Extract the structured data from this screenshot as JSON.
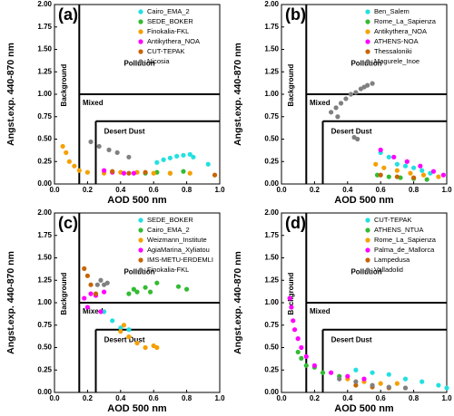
{
  "chart_data": [
    {
      "type": "scatter",
      "panel_label": "(a)",
      "xlabel": "AOD 500 nm",
      "ylabel": "Angst.exp. 440-870 nm",
      "regions": [
        "Pollution",
        "Mixed",
        "Background",
        "Desert Dust"
      ],
      "xlim": [
        0,
        1
      ],
      "ylim": [
        0,
        2
      ],
      "xticks": [
        {
          "value": 0,
          "label": "0.0"
        },
        0.2,
        0.4,
        0.6,
        0.8,
        {
          "value": 1,
          "label": "1.0"
        }
      ],
      "yticks": [
        {
          "value": 0,
          "label": "0.00"
        },
        0.25,
        {
          "value": 0.5,
          "label": "0.50"
        },
        0.75,
        {
          "value": 1,
          "label": "1.00"
        },
        1.25,
        {
          "value": 1.5,
          "label": "1.50"
        },
        1.75,
        {
          "value": 2,
          "label": "2.00"
        }
      ],
      "series": [
        {
          "name": "Cairo_EMA_2",
          "color": "#22e0e0",
          "x": [
            0.62,
            0.66,
            0.7,
            0.74,
            0.78,
            0.82,
            0.84,
            0.93
          ],
          "values": [
            0.24,
            0.27,
            0.29,
            0.31,
            0.32,
            0.33,
            0.3,
            0.22
          ]
        },
        {
          "name": "SEDE_BOKER",
          "color": "#33bb33",
          "x": [
            0.55,
            0.62,
            0.7,
            0.78
          ],
          "values": [
            0.12,
            0.13,
            0.12,
            0.14
          ]
        },
        {
          "name": "Finokalia-FKL",
          "color": "#f5a000",
          "x": [
            0.05,
            0.07,
            0.09,
            0.12,
            0.15,
            0.2,
            0.3,
            0.4,
            0.5,
            0.6,
            0.7,
            0.82
          ],
          "values": [
            0.42,
            0.35,
            0.25,
            0.2,
            0.15,
            0.13,
            0.12,
            0.13,
            0.13,
            0.12,
            0.12,
            0.12
          ]
        },
        {
          "name": "Antikythera_NOA",
          "color": "#ff00ff",
          "x": [
            0.3,
            0.35,
            0.42,
            0.48
          ],
          "values": [
            0.15,
            0.13,
            0.12,
            0.12
          ]
        },
        {
          "name": "CUT-TEPAK",
          "color": "#c86400",
          "x": [
            0.35,
            0.45,
            0.55,
            0.97
          ],
          "values": [
            0.14,
            0.12,
            0.13,
            0.1
          ]
        },
        {
          "name": "Nicosia",
          "color": "#808080",
          "x": [
            0.22,
            0.27,
            0.33,
            0.38,
            0.45
          ],
          "values": [
            0.47,
            0.42,
            0.38,
            0.35,
            0.3
          ]
        }
      ]
    },
    {
      "type": "scatter",
      "panel_label": "(b)",
      "xlabel": "AOD 500 nm",
      "ylabel": "Angst.exp. 440-870 nm",
      "regions": [
        "Pollution",
        "Mixed",
        "Background",
        "Desert Dust"
      ],
      "xlim": [
        0,
        1
      ],
      "ylim": [
        0,
        2
      ],
      "xticks": [
        {
          "value": 0,
          "label": "0.0"
        },
        0.2,
        0.4,
        0.6,
        0.8,
        {
          "value": 1,
          "label": "1.0"
        }
      ],
      "yticks": [
        {
          "value": 0,
          "label": "0.00"
        },
        0.25,
        {
          "value": 0.5,
          "label": "0.50"
        },
        0.75,
        {
          "value": 1,
          "label": "1.00"
        },
        1.25,
        {
          "value": 1.5,
          "label": "1.50"
        },
        1.75,
        {
          "value": 2,
          "label": "2.00"
        }
      ],
      "series": [
        {
          "name": "Ben_Salem",
          "color": "#22e0e0",
          "x": [
            0.6,
            0.65,
            0.7,
            0.75,
            0.8,
            0.85,
            0.9
          ],
          "values": [
            0.35,
            0.3,
            0.22,
            0.2,
            0.18,
            0.15,
            0.12
          ]
        },
        {
          "name": "Rome_La_Sapienza",
          "color": "#33bb33",
          "x": [
            0.58,
            0.65,
            0.72,
            0.8,
            0.88
          ],
          "values": [
            0.1,
            0.08,
            0.07,
            0.06,
            0.05
          ]
        },
        {
          "name": "Antikythera_NOA",
          "color": "#f5a000",
          "x": [
            0.57,
            0.62,
            0.7,
            0.78,
            0.86,
            0.95
          ],
          "values": [
            0.22,
            0.18,
            0.15,
            0.12,
            0.1,
            0.08
          ]
        },
        {
          "name": "ATHENS-NOA",
          "color": "#ff00ff",
          "x": [
            0.6,
            0.68,
            0.76,
            0.84,
            0.92,
            0.98
          ],
          "values": [
            0.38,
            0.3,
            0.25,
            0.2,
            0.14,
            0.1
          ]
        },
        {
          "name": "Thessaloniki",
          "color": "#c86400",
          "x": [
            0.6,
            0.7,
            0.8
          ],
          "values": [
            0.1,
            0.08,
            0.07
          ]
        },
        {
          "name": "Magurele_Inoe",
          "color": "#808080",
          "x": [
            0.3,
            0.33,
            0.36,
            0.39,
            0.42,
            0.45,
            0.48,
            0.5,
            0.52,
            0.55,
            0.34,
            0.44,
            0.46
          ],
          "values": [
            0.8,
            0.85,
            0.9,
            0.95,
            1.0,
            1.02,
            1.06,
            1.08,
            1.1,
            1.12,
            0.75,
            0.52,
            0.5
          ]
        }
      ]
    },
    {
      "type": "scatter",
      "panel_label": "(c)",
      "xlabel": "AOD 500 nm",
      "ylabel": "Angst.exp. 440-870 nm",
      "regions": [
        "Pollution",
        "Mixed",
        "Background",
        "Desert Dust"
      ],
      "xlim": [
        0,
        1
      ],
      "ylim": [
        0,
        2
      ],
      "xticks": [
        {
          "value": 0,
          "label": "0.0"
        },
        0.2,
        0.4,
        0.6,
        0.8,
        {
          "value": 1,
          "label": "1.0"
        }
      ],
      "yticks": [
        {
          "value": 0,
          "label": "0.00"
        },
        0.25,
        {
          "value": 0.5,
          "label": "0.50"
        },
        0.75,
        {
          "value": 1,
          "label": "1.00"
        },
        1.25,
        {
          "value": 1.5,
          "label": "1.50"
        },
        1.75,
        {
          "value": 2,
          "label": "2.00"
        }
      ],
      "series": [
        {
          "name": "SEDE_BOKER",
          "color": "#22e0e0",
          "x": [
            0.3,
            0.35,
            0.4,
            0.45
          ],
          "values": [
            0.9,
            0.8,
            0.72,
            0.7
          ]
        },
        {
          "name": "Cairo_EMA_2",
          "color": "#33bb33",
          "x": [
            0.45,
            0.48,
            0.5,
            0.55,
            0.58,
            0.62,
            0.75,
            0.8
          ],
          "values": [
            1.1,
            1.15,
            1.12,
            1.17,
            1.12,
            1.22,
            1.18,
            1.15
          ]
        },
        {
          "name": "Weizmann_Institute",
          "color": "#f5a000",
          "x": [
            0.4,
            0.45,
            0.5,
            0.55,
            0.6,
            0.62,
            0.42
          ],
          "values": [
            0.68,
            0.62,
            0.55,
            0.5,
            0.52,
            0.5,
            0.75
          ]
        },
        {
          "name": "AgiaMarina_Xyliatou",
          "color": "#ff00ff",
          "x": [
            0.18,
            0.22,
            0.25,
            0.3,
            0.2,
            0.28
          ],
          "values": [
            1.05,
            1.1,
            1.08,
            1.12,
            0.95,
            0.9
          ]
        },
        {
          "name": "IMS-METU-ERDEMLI",
          "color": "#c86400",
          "x": [
            0.18,
            0.2,
            0.22,
            0.25
          ],
          "values": [
            1.38,
            1.3,
            1.2,
            1.1
          ]
        },
        {
          "name": "Finokalia-FKL",
          "color": "#808080",
          "x": [
            0.26,
            0.28,
            0.3,
            0.32
          ],
          "values": [
            1.2,
            1.25,
            1.2,
            1.22
          ]
        }
      ]
    },
    {
      "type": "scatter",
      "panel_label": "(d)",
      "xlabel": "AOD 500 nm",
      "ylabel": "Angst.exp. 440-870 nm",
      "regions": [
        "Pollution",
        "Mixed",
        "Background",
        "Desert Dust"
      ],
      "xlim": [
        0,
        1
      ],
      "ylim": [
        0,
        2
      ],
      "xticks": [
        {
          "value": 0,
          "label": "0.0"
        },
        0.2,
        0.4,
        0.6,
        0.8,
        {
          "value": 1,
          "label": "1.0"
        }
      ],
      "yticks": [
        {
          "value": 0,
          "label": "0.00"
        },
        0.25,
        {
          "value": 0.5,
          "label": "0.50"
        },
        0.75,
        {
          "value": 1,
          "label": "1.00"
        },
        1.25,
        {
          "value": 1.5,
          "label": "1.50"
        },
        1.75,
        {
          "value": 2,
          "label": "2.00"
        }
      ],
      "series": [
        {
          "name": "CUT-TEPAK",
          "color": "#22e0e0",
          "x": [
            0.45,
            0.55,
            0.65,
            0.75,
            0.85,
            0.95,
            1.0
          ],
          "values": [
            0.25,
            0.22,
            0.2,
            0.15,
            0.12,
            0.08,
            0.05
          ]
        },
        {
          "name": "ATHENS_NTUA",
          "color": "#33bb33",
          "x": [
            0.1,
            0.12,
            0.15,
            0.2,
            0.25,
            0.35
          ],
          "values": [
            0.45,
            0.38,
            0.3,
            0.28,
            0.22,
            0.18
          ]
        },
        {
          "name": "Rome_La_Sapienza",
          "color": "#f5a000",
          "x": [
            0.4,
            0.5,
            0.6,
            0.7
          ],
          "values": [
            0.15,
            0.12,
            0.1,
            0.1
          ]
        },
        {
          "name": "Palma_de_Mallorca",
          "color": "#ff00ff",
          "x": [
            0.05,
            0.06,
            0.07,
            0.08,
            0.1,
            0.12,
            0.15,
            0.2,
            0.3,
            0.4,
            0.5
          ],
          "values": [
            1.05,
            0.95,
            0.8,
            0.7,
            0.6,
            0.5,
            0.4,
            0.3,
            0.22,
            0.18,
            0.15
          ]
        },
        {
          "name": "Lampedusa",
          "color": "#c86400",
          "x": [
            0.45,
            0.55,
            0.65,
            0.75
          ],
          "values": [
            0.08,
            0.06,
            0.05,
            0.05
          ]
        },
        {
          "name": "Valladolid",
          "color": "#808080",
          "x": [
            0.35,
            0.45,
            0.55,
            0.65,
            0.75
          ],
          "values": [
            0.15,
            0.12,
            0.08,
            0.06,
            0.05
          ]
        }
      ]
    }
  ]
}
